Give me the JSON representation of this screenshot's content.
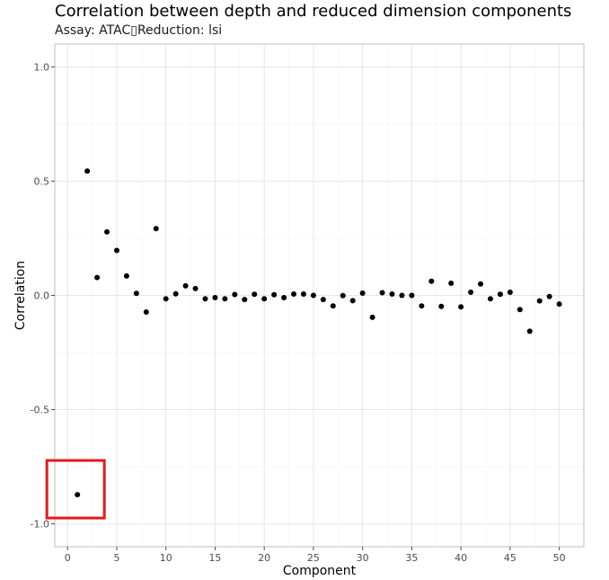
{
  "chart_data": {
    "type": "scatter",
    "title": "Correlation between depth and reduced dimension components",
    "subtitle": "Assay: ATAC▯Reduction: lsi",
    "xlabel": "Component",
    "ylabel": "Correlation",
    "xlim": [
      -1.3,
      52.5
    ],
    "ylim": [
      -1.1,
      1.1
    ],
    "xticks": [
      0,
      5,
      10,
      15,
      20,
      25,
      30,
      35,
      40,
      45,
      50
    ],
    "yticks": [
      -1.0,
      -0.5,
      0.0,
      0.5,
      1.0
    ],
    "ytick_labels": [
      "-1.0",
      "-0.5",
      "0.0",
      "0.5",
      "1.0"
    ],
    "grid": true,
    "point_color": "#000000",
    "highlight_color": "#e31a1c",
    "highlight_component": 1,
    "series": [
      {
        "x": [
          1,
          2,
          3,
          4,
          5,
          6,
          7,
          8,
          9,
          10,
          11,
          12,
          13,
          14,
          15,
          16,
          17,
          18,
          19,
          20,
          21,
          22,
          23,
          24,
          25,
          26,
          27,
          28,
          29,
          30,
          31,
          32,
          33,
          34,
          35,
          36,
          37,
          38,
          39,
          40,
          41,
          42,
          43,
          44,
          45,
          46,
          47,
          48,
          49,
          50
        ],
        "y": [
          -0.872,
          0.544,
          0.078,
          0.278,
          0.197,
          0.085,
          0.009,
          -0.073,
          0.292,
          -0.015,
          0.007,
          0.042,
          0.03,
          -0.015,
          -0.01,
          -0.015,
          0.004,
          -0.018,
          0.005,
          -0.015,
          0.003,
          -0.01,
          0.006,
          0.006,
          0.0,
          -0.018,
          -0.046,
          -0.001,
          -0.023,
          0.01,
          -0.096,
          0.012,
          0.006,
          0.0,
          0.0,
          -0.046,
          0.062,
          -0.048,
          0.053,
          -0.05,
          0.014,
          0.05,
          -0.015,
          0.005,
          0.014,
          -0.062,
          -0.157,
          -0.024,
          -0.005,
          -0.038
        ]
      }
    ]
  }
}
